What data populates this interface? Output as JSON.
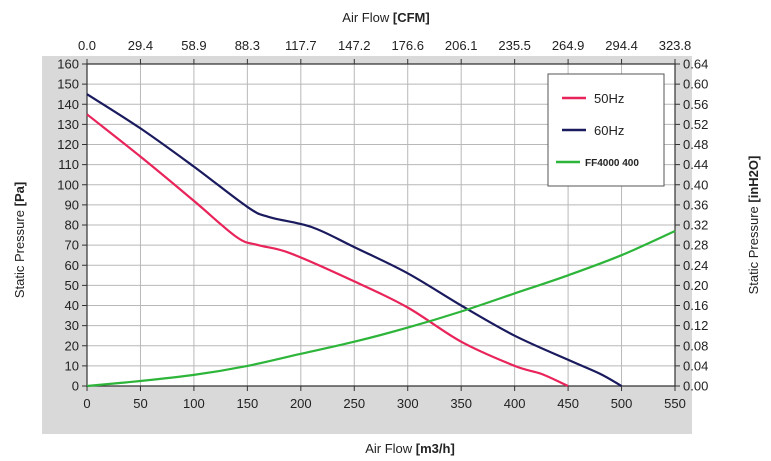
{
  "chart_data": {
    "type": "line",
    "x_bottom": {
      "label": "Air Flow",
      "unit": "[m3/h]",
      "range": [
        0,
        550
      ],
      "ticks": [
        "0",
        "50",
        "100",
        "150",
        "200",
        "250",
        "300",
        "350",
        "400",
        "450",
        "500",
        "550"
      ]
    },
    "x_top": {
      "label": "Air Flow",
      "unit": "[CFM]",
      "ticks": [
        "0.0",
        "29.4",
        "58.9",
        "88.3",
        "117.7",
        "147.2",
        "176.6",
        "206.1",
        "235.5",
        "264.9",
        "294.4",
        "323.8"
      ]
    },
    "y_left": {
      "label": "Static Pressure",
      "unit": "[Pa]",
      "range": [
        0,
        160
      ],
      "ticks": [
        "0",
        "10",
        "20",
        "30",
        "40",
        "50",
        "60",
        "70",
        "80",
        "90",
        "100",
        "110",
        "120",
        "130",
        "140",
        "150",
        "160"
      ]
    },
    "y_right": {
      "label": "Static Pressure",
      "unit": "[inH2O]",
      "ticks": [
        "0.00",
        "0.04",
        "0.08",
        "0.12",
        "0.16",
        "0.20",
        "0.24",
        "0.28",
        "0.32",
        "0.36",
        "0.40",
        "0.44",
        "0.48",
        "0.52",
        "0.56",
        "0.60",
        "0.64"
      ]
    },
    "grid": true,
    "legend_position": "top-right",
    "series": [
      {
        "name": "50Hz",
        "color": "#e8245a",
        "points": [
          [
            0,
            135
          ],
          [
            50,
            114
          ],
          [
            100,
            92
          ],
          [
            140,
            74
          ],
          [
            160,
            70
          ],
          [
            190,
            66
          ],
          [
            250,
            52
          ],
          [
            300,
            39
          ],
          [
            350,
            22
          ],
          [
            400,
            10
          ],
          [
            425,
            6
          ],
          [
            450,
            0
          ]
        ]
      },
      {
        "name": "60Hz",
        "color": "#1a1a5e",
        "points": [
          [
            0,
            145
          ],
          [
            50,
            128
          ],
          [
            100,
            109
          ],
          [
            150,
            89
          ],
          [
            170,
            84
          ],
          [
            210,
            79
          ],
          [
            250,
            69
          ],
          [
            300,
            56
          ],
          [
            350,
            40
          ],
          [
            400,
            25
          ],
          [
            450,
            13
          ],
          [
            480,
            6
          ],
          [
            500,
            0
          ]
        ]
      },
      {
        "name": "FF4000 400",
        "color": "#2db53a",
        "points": [
          [
            0,
            0
          ],
          [
            50,
            2.5
          ],
          [
            100,
            5.5
          ],
          [
            150,
            10
          ],
          [
            200,
            16
          ],
          [
            250,
            22
          ],
          [
            300,
            29
          ],
          [
            350,
            37
          ],
          [
            400,
            46
          ],
          [
            450,
            55
          ],
          [
            500,
            65
          ],
          [
            550,
            77
          ]
        ]
      }
    ]
  }
}
